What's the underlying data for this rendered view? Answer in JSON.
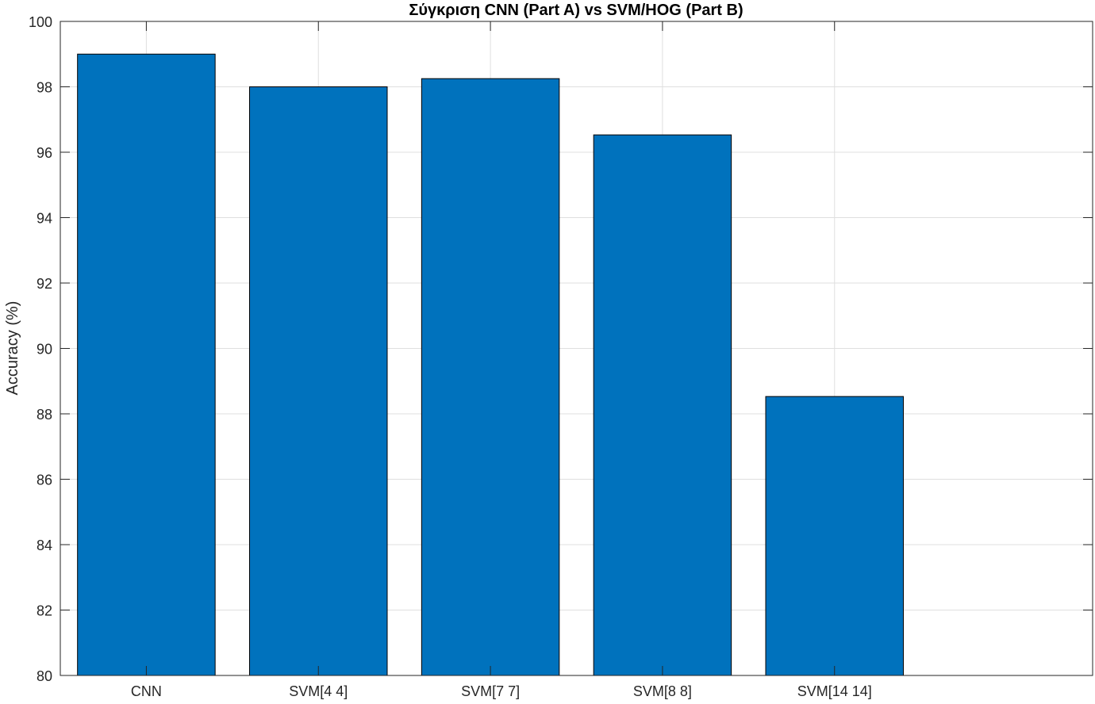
{
  "chart_data": {
    "type": "bar",
    "title": "Σύγκριση CNN (Part A) vs SVM/HOG (Part B)",
    "xlabel": "",
    "ylabel": "Accuracy (%)",
    "categories": [
      "CNN",
      "SVM[4 4]",
      "SVM[7 7]",
      "SVM[8 8]",
      "SVM[14 14]"
    ],
    "values": [
      99.0,
      98.0,
      98.25,
      96.53,
      88.53
    ],
    "ylim": [
      80,
      100
    ],
    "yticks": [
      80,
      82,
      84,
      86,
      88,
      90,
      92,
      94,
      96,
      98,
      100
    ],
    "xlim": [
      -0.5,
      5.5
    ],
    "grid": true,
    "legend": "none",
    "bar_color": "#0072BD",
    "bar_edge_color": "#000000"
  }
}
